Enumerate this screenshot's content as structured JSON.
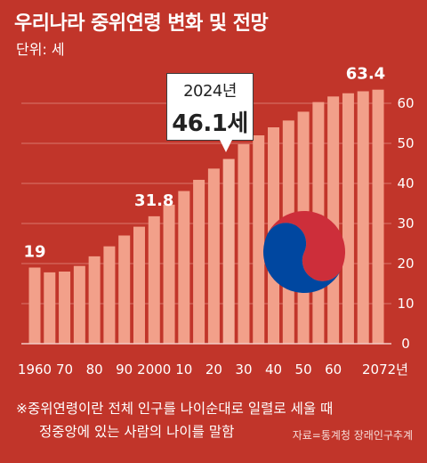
{
  "header": {
    "title": "우리나라 중위연령 변화 및 전망",
    "unit": "단위: 세"
  },
  "callout": {
    "year": "2024년",
    "value": "46.1세"
  },
  "footnote": {
    "line1": "※중위연령이란 전체 인구를 나이순대로 일렬로 세울 때",
    "line2": "정중앙에 있는 사람의 나이를 말함"
  },
  "source": "자료=통계청 장래인구추계",
  "colors": {
    "background": "#c1352a",
    "bar": "#f2a08a",
    "bar_highlight": "#f4b19c",
    "grid": "#d9776c",
    "taegeuk_red": "#cd2e3a",
    "taegeuk_blue": "#0047a0"
  },
  "emblem": "taegeuk-icon",
  "chart_data": {
    "type": "bar",
    "title": "우리나라 중위연령 변화 및 전망",
    "ylabel": "",
    "xlabel": "",
    "ylim": [
      0,
      60
    ],
    "yticks": [
      0,
      10,
      20,
      30,
      40,
      50,
      60
    ],
    "grid": true,
    "x": [
      1960,
      1965,
      1970,
      1975,
      1980,
      1985,
      1990,
      1995,
      2000,
      2005,
      2010,
      2015,
      2020,
      2024,
      2030,
      2035,
      2040,
      2045,
      2050,
      2055,
      2060,
      2065,
      2070,
      2072
    ],
    "values": [
      19.0,
      17.8,
      18.0,
      19.4,
      21.8,
      24.3,
      27.0,
      29.2,
      31.8,
      34.7,
      38.1,
      40.9,
      43.7,
      46.1,
      49.8,
      52.0,
      54.0,
      55.7,
      57.9,
      60.3,
      61.7,
      62.5,
      63.0,
      63.4
    ],
    "x_tick_labels": [
      {
        "year": 1960,
        "label": "1960"
      },
      {
        "year": 1970,
        "label": "70"
      },
      {
        "year": 1980,
        "label": "80"
      },
      {
        "year": 1990,
        "label": "90"
      },
      {
        "year": 2000,
        "label": "2000"
      },
      {
        "year": 2010,
        "label": "10"
      },
      {
        "year": 2020,
        "label": "20"
      },
      {
        "year": 2030,
        "label": "30"
      },
      {
        "year": 2040,
        "label": "40"
      },
      {
        "year": 2050,
        "label": "50"
      },
      {
        "year": 2060,
        "label": "60"
      },
      {
        "year": 2072,
        "label": "2072년"
      }
    ],
    "data_labels": [
      {
        "year": 1960,
        "label": "19"
      },
      {
        "year": 2000,
        "label": "31.8"
      },
      {
        "year": 2072,
        "label": "63.4"
      }
    ]
  }
}
